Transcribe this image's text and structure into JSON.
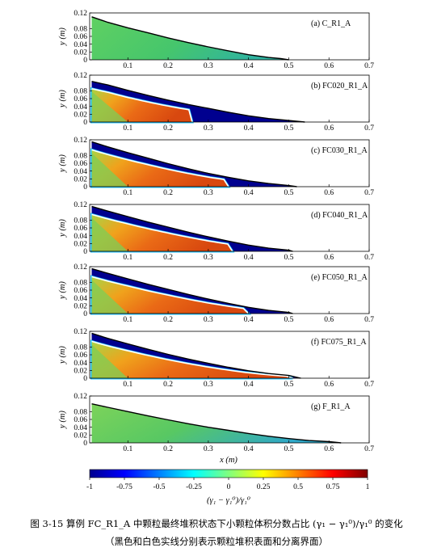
{
  "figure": {
    "panels": [
      {
        "label": "(a) C_R1_A",
        "type": "C",
        "surface": [
          [
            0.01,
            0.11
          ],
          [
            0.05,
            0.096
          ],
          [
            0.1,
            0.082
          ],
          [
            0.15,
            0.069
          ],
          [
            0.2,
            0.056
          ],
          [
            0.25,
            0.044
          ],
          [
            0.3,
            0.033
          ],
          [
            0.35,
            0.023
          ],
          [
            0.4,
            0.013
          ],
          [
            0.45,
            0.006
          ],
          [
            0.48,
            0.003
          ],
          [
            0.5,
            0.0
          ]
        ]
      },
      {
        "label": "(b) FC020_R1_A",
        "type": "FC",
        "interface_end": 0.26,
        "surface": [
          [
            0.01,
            0.104
          ],
          [
            0.05,
            0.095
          ],
          [
            0.1,
            0.081
          ],
          [
            0.15,
            0.068
          ],
          [
            0.2,
            0.056
          ],
          [
            0.25,
            0.045
          ],
          [
            0.3,
            0.035
          ],
          [
            0.35,
            0.025
          ],
          [
            0.4,
            0.016
          ],
          [
            0.45,
            0.009
          ],
          [
            0.5,
            0.004
          ],
          [
            0.54,
            0.0
          ]
        ]
      },
      {
        "label": "(c) FC030_R1_A",
        "type": "FC",
        "interface_end": 0.35,
        "surface": [
          [
            0.01,
            0.115
          ],
          [
            0.05,
            0.102
          ],
          [
            0.1,
            0.087
          ],
          [
            0.15,
            0.073
          ],
          [
            0.2,
            0.059
          ],
          [
            0.25,
            0.046
          ],
          [
            0.3,
            0.034
          ],
          [
            0.35,
            0.024
          ],
          [
            0.4,
            0.015
          ],
          [
            0.45,
            0.008
          ],
          [
            0.5,
            0.003
          ],
          [
            0.52,
            0.0
          ]
        ]
      },
      {
        "label": "(d) FC040_R1_A",
        "type": "FC",
        "interface_end": 0.36,
        "surface": [
          [
            0.01,
            0.115
          ],
          [
            0.05,
            0.103
          ],
          [
            0.1,
            0.089
          ],
          [
            0.15,
            0.075
          ],
          [
            0.2,
            0.062
          ],
          [
            0.25,
            0.049
          ],
          [
            0.3,
            0.037
          ],
          [
            0.35,
            0.026
          ],
          [
            0.4,
            0.016
          ],
          [
            0.45,
            0.008
          ],
          [
            0.5,
            0.003
          ],
          [
            0.51,
            0.0
          ]
        ]
      },
      {
        "label": "(e) FC050_R1_A",
        "type": "FC",
        "interface_end": 0.4,
        "surface": [
          [
            0.01,
            0.115
          ],
          [
            0.05,
            0.103
          ],
          [
            0.1,
            0.089
          ],
          [
            0.15,
            0.075
          ],
          [
            0.2,
            0.062
          ],
          [
            0.25,
            0.049
          ],
          [
            0.3,
            0.037
          ],
          [
            0.35,
            0.026
          ],
          [
            0.4,
            0.016
          ],
          [
            0.45,
            0.008
          ],
          [
            0.5,
            0.003
          ],
          [
            0.51,
            0.0
          ]
        ]
      },
      {
        "label": "(f) FC075_R1_A",
        "type": "FC",
        "interface_end": 0.51,
        "surface": [
          [
            0.01,
            0.115
          ],
          [
            0.05,
            0.102
          ],
          [
            0.1,
            0.088
          ],
          [
            0.15,
            0.074
          ],
          [
            0.2,
            0.061
          ],
          [
            0.25,
            0.049
          ],
          [
            0.3,
            0.038
          ],
          [
            0.35,
            0.028
          ],
          [
            0.4,
            0.019
          ],
          [
            0.45,
            0.012
          ],
          [
            0.5,
            0.007
          ],
          [
            0.53,
            0.0
          ]
        ]
      },
      {
        "label": "(g) F_R1_A",
        "type": "F",
        "surface": [
          [
            0.01,
            0.1
          ],
          [
            0.05,
            0.091
          ],
          [
            0.1,
            0.08
          ],
          [
            0.15,
            0.069
          ],
          [
            0.2,
            0.059
          ],
          [
            0.25,
            0.049
          ],
          [
            0.3,
            0.04
          ],
          [
            0.35,
            0.032
          ],
          [
            0.4,
            0.024
          ],
          [
            0.45,
            0.017
          ],
          [
            0.5,
            0.011
          ],
          [
            0.55,
            0.006
          ],
          [
            0.6,
            0.003
          ],
          [
            0.63,
            0.0
          ]
        ]
      }
    ],
    "y_ticks": [
      "0.12",
      "0.08",
      "0.06",
      "0.04",
      "0.02",
      "0"
    ],
    "y_tick_values": [
      0.12,
      0.08,
      0.06,
      0.04,
      0.02,
      0
    ],
    "x_ticks": [
      "0.1",
      "0.2",
      "0.3",
      "0.4",
      "0.5",
      "0.6",
      "0.7"
    ],
    "x_tick_values": [
      0.1,
      0.2,
      0.3,
      0.4,
      0.5,
      0.6,
      0.7
    ],
    "x_range": [
      0.005,
      0.7
    ],
    "y_range": [
      0,
      0.12
    ],
    "ylabel": "y (m)",
    "xlabel": "x (m)",
    "colorbar": {
      "ticks": [
        "-1",
        "-0.75",
        "-0.5",
        "-0.25",
        "0",
        "0.25",
        "0.5",
        "0.75",
        "1"
      ],
      "tick_values": [
        -1,
        -0.75,
        -0.5,
        -0.25,
        0,
        0.25,
        0.5,
        0.75,
        1
      ],
      "label": "(γ₁ − γ₁⁰)/γ₁⁰",
      "colors": [
        "#00008f",
        "#0000ff",
        "#00ffff",
        "#7fff7f",
        "#ffff00",
        "#ff0000",
        "#7f0000"
      ]
    }
  },
  "caption": {
    "line1": "图 3-15 算例 FC_R1_A 中颗粒最终堆积状态下小颗粒体积分数占比 (γ₁ − γ₁⁰)/γ₁⁰ 的变化",
    "line2": "（黑色和白色实线分别表示颗粒堆积表面和分离界面）"
  }
}
